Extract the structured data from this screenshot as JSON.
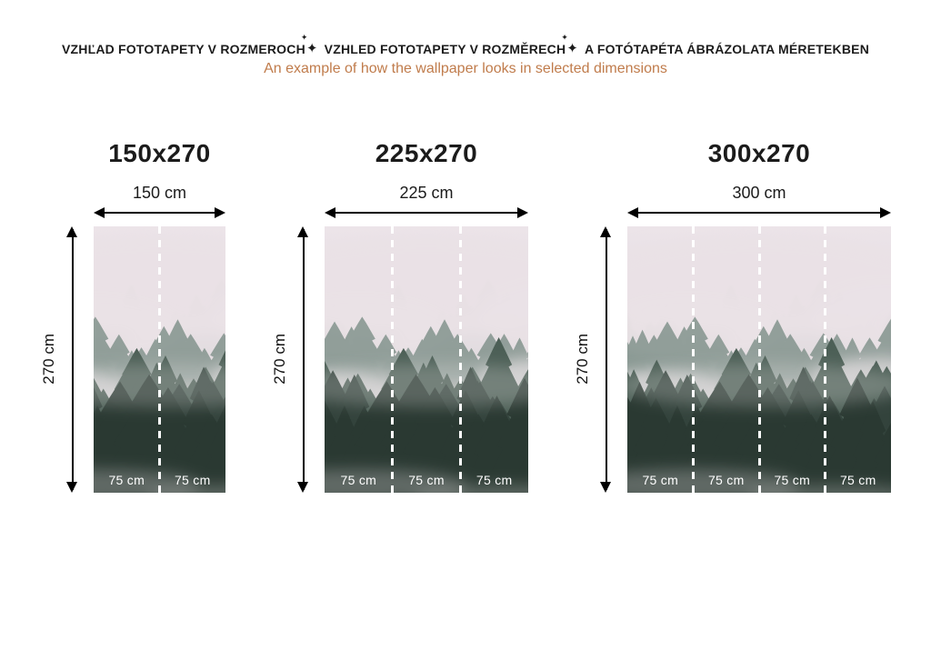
{
  "header": {
    "title_segments": [
      "VZHĽAD FOTOTAPETY V ROZMEROCH",
      "VZHLED FOTOTAPETY V ROZMĚRECH",
      "A FOTÓTAPÉTA ÁBRÁZOLATA MÉRETEKBEN"
    ],
    "separator_icon": "✦",
    "subtitle": "An example of how the wallpaper looks in selected dimensions",
    "subtitle_color": "#c07c4c"
  },
  "panels": [
    {
      "title": "150x270",
      "width_label": "150 cm",
      "height_label": "270 cm",
      "strips": [
        "75 cm",
        "75 cm"
      ]
    },
    {
      "title": "225x270",
      "width_label": "225 cm",
      "height_label": "270 cm",
      "strips": [
        "75 cm",
        "75 cm",
        "75 cm"
      ]
    },
    {
      "title": "300x270",
      "width_label": "300 cm",
      "height_label": "270 cm",
      "strips": [
        "75 cm",
        "75 cm",
        "75 cm",
        "75 cm"
      ]
    }
  ],
  "divider_color": "#ffffff",
  "arrow_color": "#000000"
}
